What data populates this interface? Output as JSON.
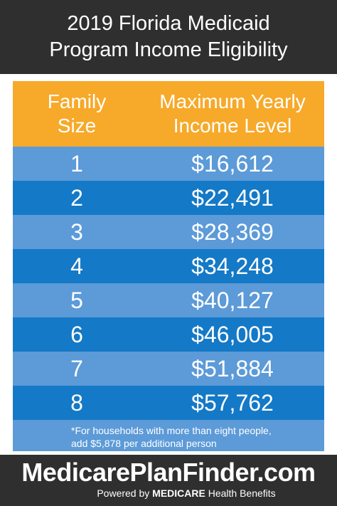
{
  "header": {
    "title_line1": "2019 Florida Medicaid",
    "title_line2": "Program Income Eligibility"
  },
  "table": {
    "col_size_line1": "Family",
    "col_size_line2": "Size",
    "col_income_line1": "Maximum Yearly",
    "col_income_line2": "Income Level",
    "rows": [
      {
        "size": "1",
        "income": "$16,612"
      },
      {
        "size": "2",
        "income": "$22,491"
      },
      {
        "size": "3",
        "income": "$28,369"
      },
      {
        "size": "4",
        "income": "$34,248"
      },
      {
        "size": "5",
        "income": "$40,127"
      },
      {
        "size": "6",
        "income": "$46,005"
      },
      {
        "size": "7",
        "income": "$51,884"
      },
      {
        "size": "8",
        "income": "$57,762"
      }
    ],
    "footnote_line1": "*For households with more than eight people,",
    "footnote_line2": "add $5,878 per additional person"
  },
  "brand": {
    "name": "MedicarePlanFinder.com",
    "powered_prefix": "Powered by ",
    "powered_bold": "MEDICARE",
    "powered_suffix": " Health Benefits"
  },
  "colors": {
    "header_bg": "#2f2f2f",
    "table_header_bg": "#f7a929",
    "row_light": "#5c9ad8",
    "row_dark": "#1479c6"
  }
}
